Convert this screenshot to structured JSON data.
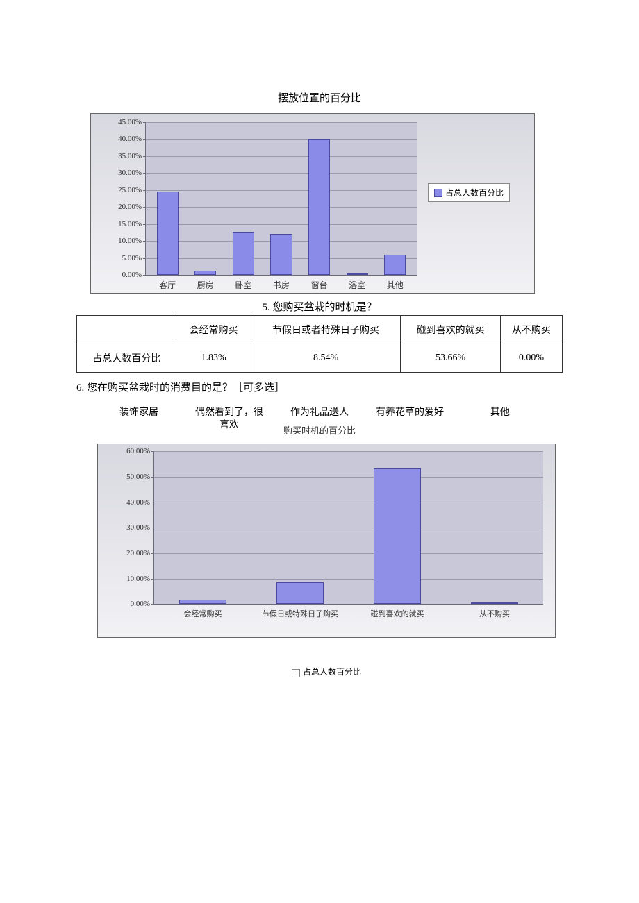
{
  "chart1": {
    "title": "摆放位置的百分比",
    "type": "bar",
    "categories": [
      "客厅",
      "厨房",
      "卧室",
      "书房",
      "窗台",
      "浴室",
      "其他"
    ],
    "values": [
      24.5,
      1.2,
      12.7,
      12.0,
      40.0,
      0.5,
      6.0
    ],
    "ymax": 45.0,
    "ystep": 5.0,
    "bar_color": "#8a8ae8",
    "bar_border": "#4a4aa0",
    "plot_bg": "#c8c8d8",
    "grid_color": "#9898a8",
    "outer_bg_top": "#d8d8e0",
    "outer_bg_bottom": "#f2f2f5",
    "legend_label": "占总人数百分比",
    "tick_fontsize": 11,
    "label_fontsize": 12,
    "bar_width_pct": 8.0,
    "bar_gap_pct": 6.0
  },
  "q5": {
    "title": "5. 您购买盆栽的时机是？",
    "row_label": "占总人数百分比",
    "columns": [
      "会经常购买",
      "节假日或者特殊日子购买",
      "碰到喜欢的就买",
      "从不购买"
    ],
    "values": [
      "1.83%",
      "8.54%",
      "53.66%",
      "0.00%"
    ]
  },
  "q6": {
    "title": "6. 您在购买盆栽时的消费目的是？［可多选］",
    "answers": [
      "装饰家居",
      "偶然看到了，很喜欢",
      "作为礼品送人",
      "有养花草的爱好",
      "其他"
    ]
  },
  "chart2": {
    "title": "购买时机的百分比",
    "type": "bar",
    "categories": [
      "会经常购买",
      "节假日或特殊日子购买",
      "碰到喜欢的就买",
      "从不购买"
    ],
    "values": [
      1.83,
      8.54,
      53.66,
      0.0
    ],
    "ymax": 60.0,
    "ystep": 10.0,
    "bar_color": "#8f8fe8",
    "bar_border": "#4a4aa0",
    "plot_bg": "#c8c8d8",
    "grid_color": "#9898a8",
    "legend_label": "占总人数百分比",
    "tick_fontsize": 11,
    "label_fontsize": 11,
    "bar_width_pct": 12,
    "bar_gap_pct": 13
  }
}
